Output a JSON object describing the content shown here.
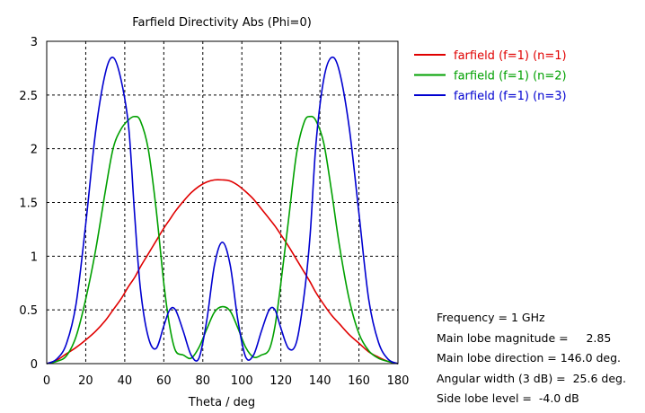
{
  "chart_data": {
    "type": "line",
    "title": "Farfield Directivity Abs (Phi=0)",
    "xlabel": "Theta / deg",
    "ylabel": "",
    "xlim": [
      0,
      180
    ],
    "ylim": [
      0,
      3
    ],
    "xticks": [
      "0",
      "20",
      "40",
      "60",
      "80",
      "100",
      "120",
      "140",
      "160",
      "180"
    ],
    "yticks": [
      "0",
      "0.5",
      "1",
      "1.5",
      "2",
      "2.5",
      "3"
    ],
    "grid": true,
    "legend_position": "top-right",
    "x": [
      0,
      5,
      10,
      15,
      20,
      25,
      30,
      34,
      38,
      42,
      45,
      48,
      52,
      56,
      60,
      63,
      66,
      70,
      74,
      78,
      82,
      86,
      90,
      94,
      98,
      102,
      106,
      110,
      114,
      117,
      120,
      124,
      128,
      132,
      135,
      138,
      142,
      146,
      150,
      155,
      160,
      165,
      170,
      175,
      180
    ],
    "series": [
      {
        "name": "farfield (f=1) (n=1)",
        "color": "#e00000",
        "values": [
          0.0,
          0.03,
          0.09,
          0.15,
          0.22,
          0.3,
          0.4,
          0.5,
          0.6,
          0.72,
          0.8,
          0.9,
          1.02,
          1.14,
          1.26,
          1.34,
          1.42,
          1.51,
          1.59,
          1.65,
          1.69,
          1.71,
          1.71,
          1.7,
          1.66,
          1.6,
          1.53,
          1.44,
          1.35,
          1.28,
          1.2,
          1.09,
          0.97,
          0.85,
          0.76,
          0.66,
          0.55,
          0.45,
          0.37,
          0.27,
          0.19,
          0.11,
          0.06,
          0.02,
          0.0
        ]
      },
      {
        "name": "farfield (f=1) (n=2)",
        "color": "#00a000",
        "values": [
          0.0,
          0.02,
          0.07,
          0.25,
          0.6,
          1.05,
          1.6,
          2.0,
          2.18,
          2.27,
          2.3,
          2.26,
          2.0,
          1.45,
          0.75,
          0.35,
          0.12,
          0.08,
          0.05,
          0.15,
          0.32,
          0.48,
          0.53,
          0.49,
          0.33,
          0.15,
          0.06,
          0.08,
          0.13,
          0.35,
          0.75,
          1.35,
          1.95,
          2.25,
          2.3,
          2.26,
          2.05,
          1.6,
          1.1,
          0.6,
          0.28,
          0.12,
          0.05,
          0.02,
          0.0
        ]
      },
      {
        "name": "farfield (f=1) (n=3)",
        "color": "#0000d0",
        "values": [
          0.0,
          0.04,
          0.18,
          0.55,
          1.3,
          2.15,
          2.7,
          2.85,
          2.65,
          2.2,
          1.4,
          0.7,
          0.25,
          0.14,
          0.35,
          0.5,
          0.5,
          0.3,
          0.08,
          0.05,
          0.4,
          0.92,
          1.13,
          0.92,
          0.4,
          0.06,
          0.08,
          0.3,
          0.5,
          0.5,
          0.33,
          0.14,
          0.2,
          0.65,
          1.2,
          2.05,
          2.65,
          2.85,
          2.72,
          2.2,
          1.4,
          0.6,
          0.2,
          0.04,
          0.0
        ]
      }
    ],
    "annotations": [
      {
        "label": "Frequency = 1 GHz",
        "value": ""
      },
      {
        "label": "Main lobe magnitude =",
        "value": "     2.85"
      },
      {
        "label": "Main lobe direction =",
        "value": " 146.0 deg."
      },
      {
        "label": "Angular width (3 dB) =",
        "value": "  25.6 deg."
      },
      {
        "label": "Side lobe level =",
        "value": "  -4.0 dB"
      }
    ]
  }
}
